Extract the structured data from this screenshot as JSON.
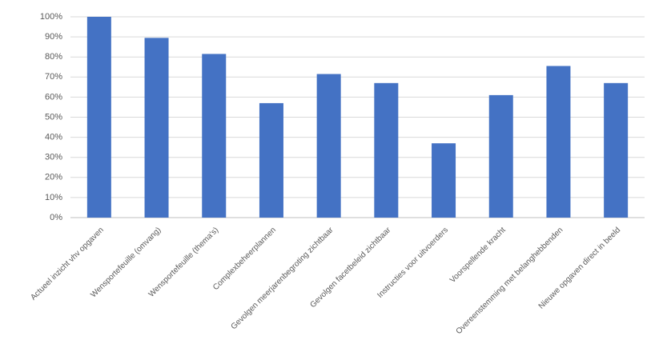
{
  "chart_data": {
    "type": "bar",
    "categories": [
      "Actueel inzicht vhv opgaven",
      "Wensportefeuille (omvang)",
      "Wensportefeuille (thema's)",
      "Complexbeheerplannen",
      "Gevolgen meerjarenbegroting zichtbaar",
      "Gevolgen facetbeleid zichtbaar",
      "Instructies voor uitvoerders",
      "Voorspellende kracht",
      "Overeenstemming met belanghebbenden",
      "Nieuwe opgaven direct in beeld"
    ],
    "values": [
      100,
      89.5,
      81.5,
      57,
      71.5,
      67,
      37,
      61,
      75.5,
      67
    ],
    "color": "#4472c4",
    "ylim": [
      0,
      100
    ],
    "yticks": [
      {
        "value": 0,
        "label": "0%"
      },
      {
        "value": 10,
        "label": "10%"
      },
      {
        "value": 20,
        "label": "20%"
      },
      {
        "value": 30,
        "label": "30%"
      },
      {
        "value": 40,
        "label": "40%"
      },
      {
        "value": 50,
        "label": "50%"
      },
      {
        "value": 60,
        "label": "60%"
      },
      {
        "value": 70,
        "label": "70%"
      },
      {
        "value": 80,
        "label": "80%"
      },
      {
        "value": 90,
        "label": "90%"
      },
      {
        "value": 100,
        "label": "100%"
      }
    ],
    "grid": true
  }
}
